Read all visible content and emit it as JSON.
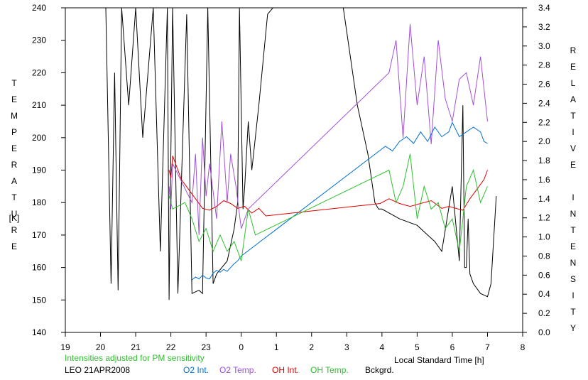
{
  "chart_data": {
    "type": "line",
    "left_axis_label": "TEMPERATURE",
    "left_axis_unit": "[K]",
    "right_axis_label": "RELATIVE INTENSITY",
    "x_axis_label": "Local Standard Time [h]",
    "note": "Intensities adjusted for PM sensitivity",
    "station": "LEO 21APR2008",
    "x_ticks": [
      "19",
      "20",
      "21",
      "22",
      "23",
      "0",
      "1",
      "2",
      "3",
      "4",
      "5",
      "6",
      "7",
      "8"
    ],
    "left_ylim": [
      140,
      240
    ],
    "left_ticks": [
      140,
      150,
      160,
      170,
      180,
      190,
      200,
      210,
      220,
      230,
      240
    ],
    "right_ylim": [
      0.0,
      3.4
    ],
    "right_ticks": [
      "0.0",
      "0.2",
      "0.4",
      "0.6",
      "0.8",
      "1.0",
      "1.2",
      "1.4",
      "1.6",
      "1.8",
      "2.0",
      "2.2",
      "2.4",
      "2.6",
      "2.8",
      "3.0",
      "3.2",
      "3.4"
    ],
    "x_range_hours_after_19": [
      0,
      13
    ],
    "legend": [
      {
        "name": "O2 Int.",
        "color": "#0070d0"
      },
      {
        "name": "O2 Temp.",
        "color": "#a050d8"
      },
      {
        "name": "OH Int.",
        "color": "#e00000"
      },
      {
        "name": "OH Temp.",
        "color": "#30c030"
      },
      {
        "name": "Bckgrd.",
        "color": "#000000"
      }
    ],
    "series": [
      {
        "name": "Bckgrd.",
        "axis": "left",
        "x": [
          1.15,
          1.3,
          1.4,
          1.5,
          1.6,
          1.8,
          2.0,
          2.2,
          2.5,
          2.7,
          2.9,
          2.95,
          3.05,
          3.2,
          3.45,
          3.6,
          3.8,
          3.9,
          4.05,
          4.2,
          4.3,
          4.6,
          4.8,
          4.9,
          4.95,
          5.05,
          5.1,
          5.2,
          5.3,
          5.5,
          5.75,
          5.9,
          6.1,
          6.3,
          6.5,
          7.0,
          7.5,
          7.9,
          8.3,
          8.6,
          8.8,
          8.9,
          9.0,
          9.5,
          10.0,
          10.3,
          10.5,
          10.7,
          11.0,
          11.2,
          11.3,
          11.35,
          11.4,
          11.45,
          11.5,
          11.6,
          11.8,
          12.0,
          12.1,
          12.25
        ],
        "y": [
          240,
          155,
          220,
          153,
          240,
          210,
          240,
          200,
          240,
          165,
          240,
          150,
          240,
          152,
          238,
          152,
          153,
          152,
          240,
          155,
          158,
          162,
          172,
          180,
          240,
          178,
          185,
          205,
          190,
          210,
          238,
          240,
          240,
          245,
          245,
          245,
          245,
          240,
          210,
          195,
          180,
          178,
          178,
          175,
          173,
          170,
          168,
          165,
          185,
          162,
          210,
          160,
          160,
          175,
          158,
          155,
          152,
          151,
          155,
          182
        ]
      },
      {
        "name": "O2 Temp.",
        "axis": "left",
        "x": [
          2.95,
          3.0,
          3.05,
          3.6,
          3.7,
          3.8,
          3.9,
          4.0,
          4.1,
          4.3,
          4.45,
          4.6,
          4.7,
          4.85,
          5.0,
          5.2,
          9.2,
          9.4,
          9.6,
          9.8,
          10.0,
          10.2,
          10.4,
          10.6,
          10.8,
          11.0,
          11.2,
          11.4,
          11.6,
          11.8,
          12.0
        ],
        "y": [
          185,
          178,
          192,
          180,
          195,
          170,
          200,
          182,
          192,
          175,
          205,
          180,
          195,
          185,
          172,
          178,
          220,
          230,
          200,
          235,
          210,
          225,
          198,
          230,
          212,
          205,
          218,
          220,
          210,
          225,
          205
        ]
      },
      {
        "name": "O2 Int.",
        "axis": "right",
        "x": [
          3.6,
          3.7,
          3.8,
          3.9,
          4.0,
          4.1,
          4.2,
          4.3,
          4.4,
          4.5,
          4.6,
          4.7,
          4.8,
          4.9,
          5.0,
          9.1,
          9.3,
          9.5,
          9.7,
          9.9,
          10.1,
          10.3,
          10.5,
          10.7,
          10.9,
          11.0,
          11.2,
          11.4,
          11.6,
          11.8,
          11.9,
          12.0
        ],
        "y": [
          0.55,
          0.58,
          0.56,
          0.6,
          0.57,
          0.56,
          0.62,
          0.65,
          0.63,
          0.66,
          0.64,
          0.68,
          0.72,
          0.75,
          0.8,
          1.95,
          1.9,
          2.0,
          2.05,
          1.98,
          2.1,
          2.0,
          2.15,
          2.05,
          2.1,
          2.2,
          2.05,
          2.1,
          2.15,
          2.1,
          2.0,
          1.98
        ]
      },
      {
        "name": "OH Int.",
        "axis": "right",
        "x": [
          2.95,
          3.0,
          3.05,
          3.3,
          3.5,
          3.7,
          3.9,
          4.1,
          4.3,
          4.5,
          4.7,
          4.9,
          5.1,
          5.3,
          5.5,
          5.7,
          8.95,
          9.2,
          9.5,
          9.8,
          10.1,
          10.4,
          10.7,
          10.9,
          11.3,
          11.5,
          11.7,
          11.9,
          12.0
        ],
        "y": [
          1.7,
          1.62,
          1.85,
          1.6,
          1.5,
          1.4,
          1.3,
          1.28,
          1.32,
          1.38,
          1.35,
          1.3,
          1.32,
          1.25,
          1.3,
          1.22,
          1.35,
          1.4,
          1.35,
          1.32,
          1.35,
          1.38,
          1.3,
          1.32,
          1.28,
          1.4,
          1.5,
          1.6,
          1.7
        ]
      },
      {
        "name": "OH Temp.",
        "axis": "left",
        "x": [
          2.95,
          3.05,
          3.4,
          3.6,
          3.8,
          4.0,
          4.2,
          4.4,
          4.6,
          4.8,
          5.0,
          5.2,
          5.4,
          9.2,
          9.4,
          9.6,
          9.8,
          10.0,
          10.2,
          10.4,
          10.6,
          10.8,
          11.0,
          11.2,
          11.4,
          11.6,
          11.8,
          12.0
        ],
        "y": [
          182,
          178,
          180,
          175,
          168,
          172,
          165,
          170,
          165,
          168,
          162,
          178,
          170,
          190,
          180,
          185,
          195,
          175,
          185,
          178,
          180,
          172,
          175,
          165,
          185,
          190,
          180,
          185
        ]
      }
    ]
  }
}
